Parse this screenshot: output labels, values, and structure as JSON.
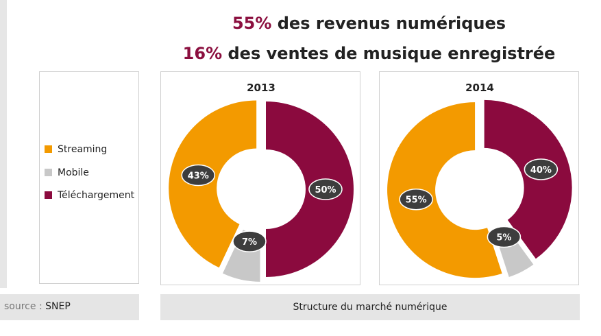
{
  "headlines": [
    {
      "pct": "55%",
      "text": " des revenus numériques"
    },
    {
      "pct": "16%",
      "text": " des ventes de musique enregistrée"
    }
  ],
  "legend": [
    {
      "label": "Streaming",
      "color": "#f39a00"
    },
    {
      "label": "Mobile",
      "color": "#c8c8c8"
    },
    {
      "label": "Téléchargement",
      "color": "#8b0a3e"
    }
  ],
  "source": {
    "label": "source :",
    "value": "SNEP"
  },
  "footer": "Structure du marché numérique",
  "chart_data": [
    {
      "type": "pie",
      "title": "2013",
      "categories": [
        "Téléchargement",
        "Mobile",
        "Streaming"
      ],
      "values": [
        50,
        7,
        43
      ],
      "labels": [
        "50%",
        "7%",
        "43%"
      ],
      "colors": [
        "#8b0a3e",
        "#c8c8c8",
        "#f39a00"
      ],
      "donut": true,
      "legend": "left"
    },
    {
      "type": "pie",
      "title": "2014",
      "categories": [
        "Téléchargement",
        "Mobile",
        "Streaming"
      ],
      "values": [
        40,
        5,
        55
      ],
      "labels": [
        "40%",
        "5%",
        "55%"
      ],
      "colors": [
        "#8b0a3e",
        "#c8c8c8",
        "#f39a00"
      ],
      "donut": true,
      "legend": "left"
    }
  ]
}
